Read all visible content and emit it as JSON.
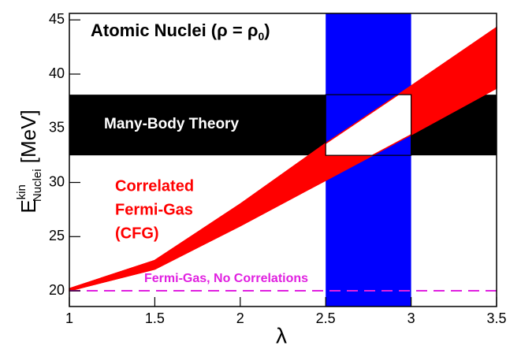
{
  "chart_data": {
    "type": "band",
    "title_parts": [
      "Atomic Nuclei (ρ = ρ",
      "0",
      ")"
    ],
    "x_label": "λ",
    "y_label_parts": [
      "E",
      "kin",
      "Nuclei",
      " [MeV]"
    ],
    "xlim": [
      1,
      3.5
    ],
    "ylim": [
      18.55,
      45.6
    ],
    "xticks": [
      1,
      1.5,
      2,
      2.5,
      3,
      3.5
    ],
    "yticks": [
      20,
      25,
      30,
      35,
      40,
      45
    ],
    "x": [
      1,
      1.5,
      2,
      2.5,
      3,
      3.5
    ],
    "series": [
      {
        "color": "#ff0000",
        "lower": [
          20,
          22.0,
          26.0,
          30.2,
          34.4,
          38.7
        ],
        "upper": [
          20.2,
          22.8,
          28.0,
          33.6,
          38.9,
          44.3
        ]
      }
    ],
    "series_label": [
      "Correlated",
      "Fermi-Gas",
      "(CFG)"
    ],
    "horizontal_band": {
      "ylim": [
        32.5,
        38.1
      ],
      "color": "#000000",
      "label": "Many-Body Theory"
    },
    "vertical_band": {
      "xlim": [
        2.5,
        3.0
      ],
      "color": "#0000ff"
    },
    "reference_line": {
      "y": 20,
      "color": "#e020e0",
      "label": "Fermi-Gas, No Correlations"
    }
  }
}
